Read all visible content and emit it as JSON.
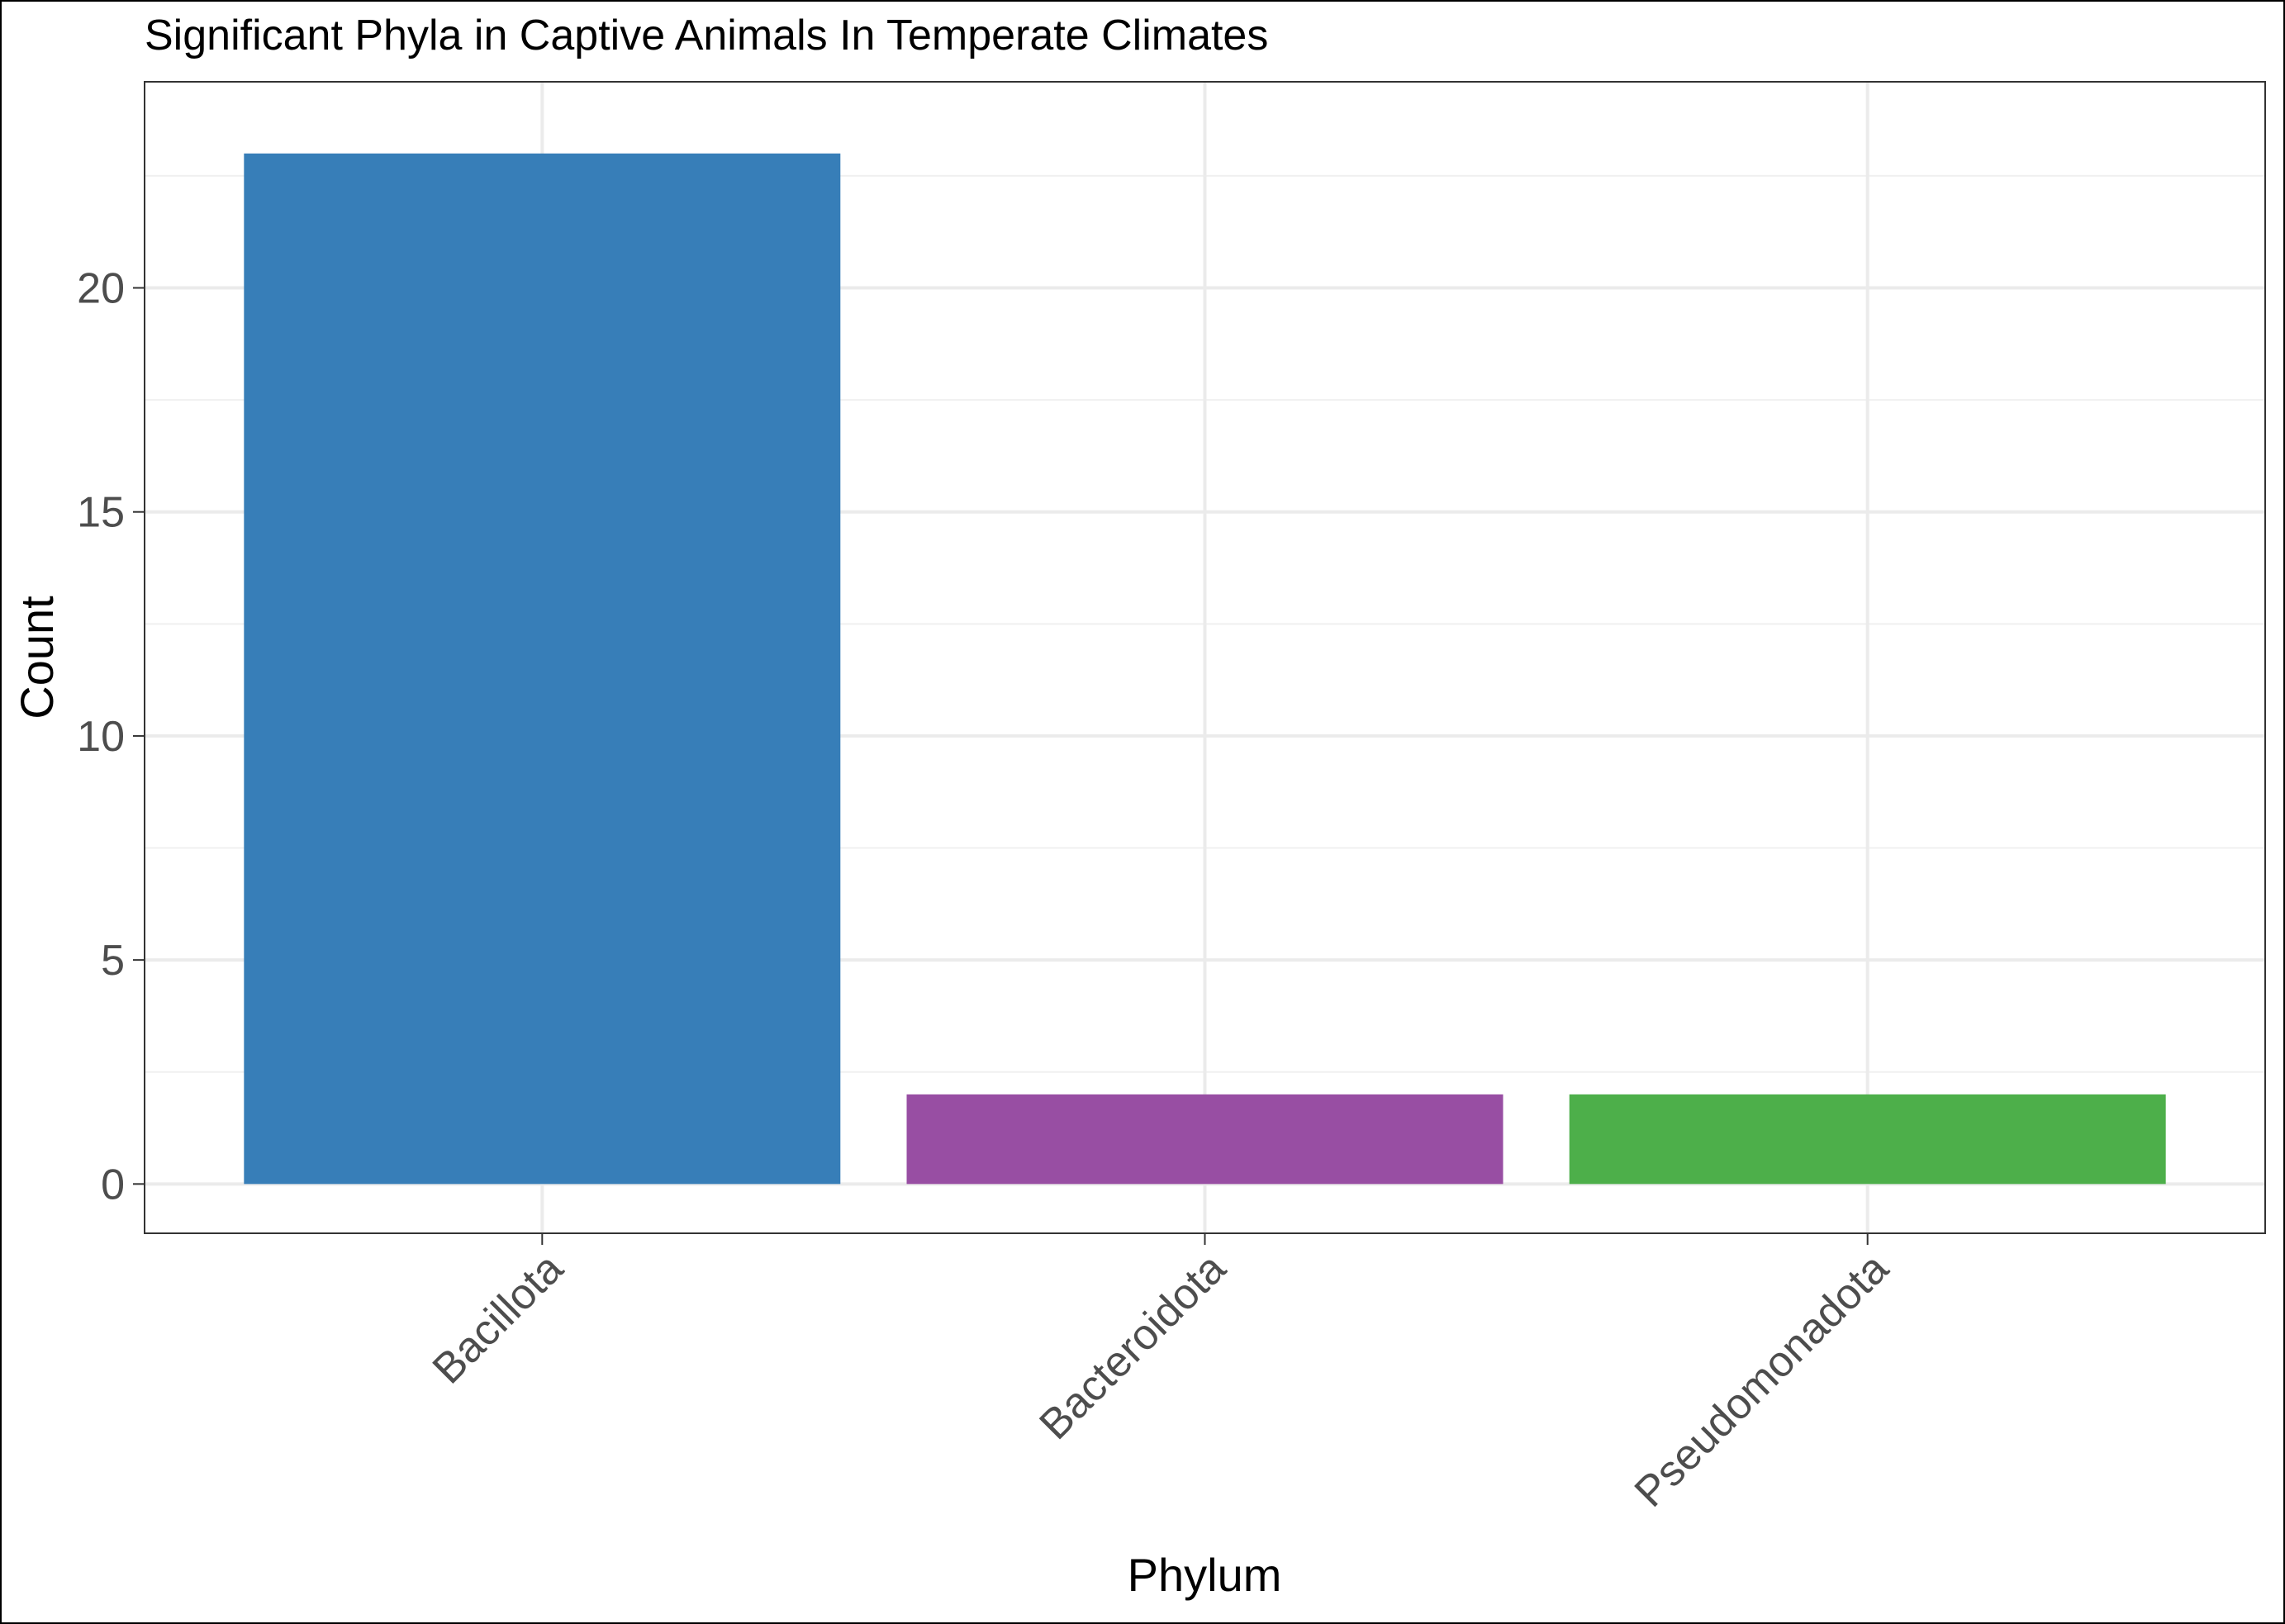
{
  "chart_data": {
    "type": "bar",
    "title": "Significant Phyla in Captive Animals In Temperate Climates",
    "xlabel": "Phylum",
    "ylabel": "Count",
    "categories": [
      "Bacillota",
      "Bacteroidota",
      "Pseudomonadota"
    ],
    "values": [
      23,
      2,
      2
    ],
    "colors": [
      "#377EB8",
      "#984EA3",
      "#4DAF4A"
    ],
    "ylim": [
      -1.1,
      24.6
    ],
    "yticks": [
      0,
      5,
      10,
      15,
      20
    ],
    "grid": true,
    "legend": "none"
  }
}
